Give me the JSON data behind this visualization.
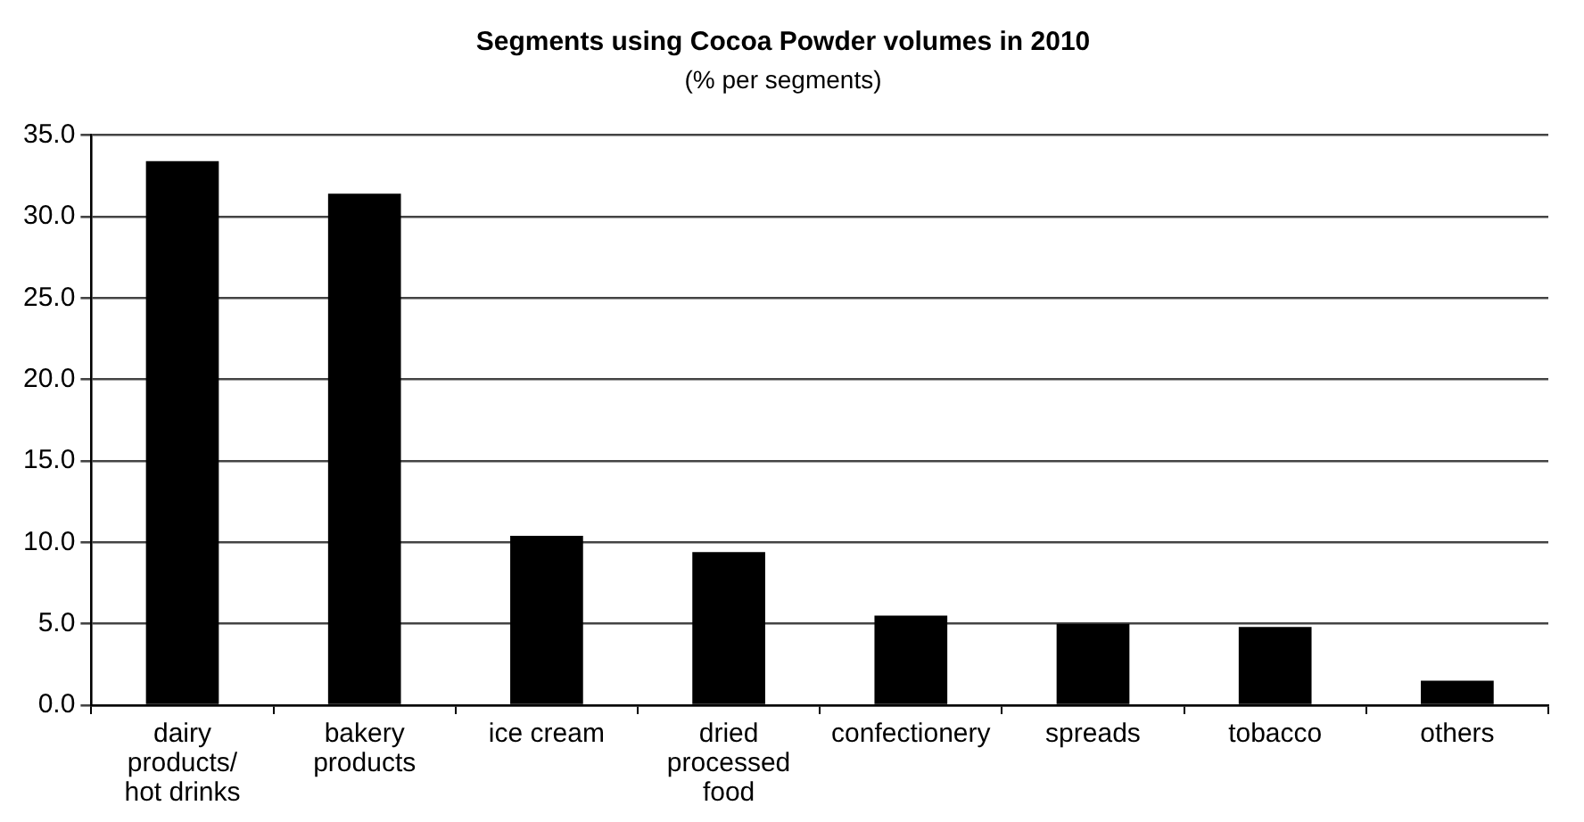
{
  "chart_data": {
    "type": "bar",
    "title": "Segments using Cocoa Powder volumes in 2010",
    "subtitle": "(% per segments)",
    "categories": [
      "dairy products/ hot drinks",
      "bakery products",
      "ice cream",
      "dried processed food",
      "confectionery",
      "spreads",
      "tobacco",
      "others"
    ],
    "values": [
      33.4,
      31.4,
      10.4,
      9.4,
      5.5,
      5.0,
      4.8,
      1.5
    ],
    "color": "#000000",
    "ylim": [
      0,
      35
    ],
    "yticks": [
      {
        "value": 0,
        "label": "0.0"
      },
      {
        "value": 5,
        "label": "5.0"
      },
      {
        "value": 10,
        "label": "10.0"
      },
      {
        "value": 15,
        "label": "15.0"
      },
      {
        "value": 20,
        "label": "20.0"
      },
      {
        "value": 25,
        "label": "25.0"
      },
      {
        "value": 30,
        "label": "30.0"
      },
      {
        "value": 35,
        "label": "35.0"
      }
    ],
    "grid": "y",
    "legend": false
  }
}
